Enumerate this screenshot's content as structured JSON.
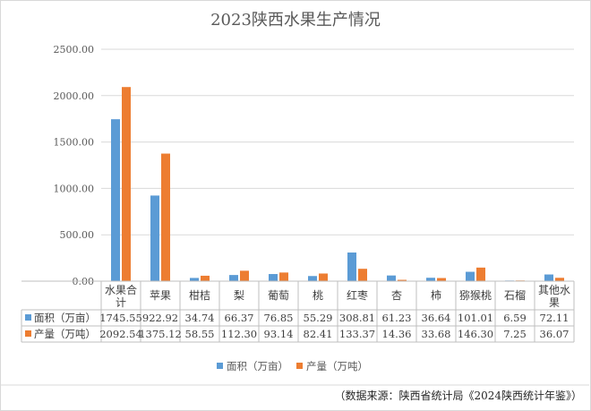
{
  "chart_data": {
    "type": "bar",
    "title": "2023陕西水果生产情况",
    "categories": [
      [
        "水果合",
        "计"
      ],
      [
        "苹果"
      ],
      [
        "柑桔"
      ],
      [
        "梨"
      ],
      [
        "葡萄"
      ],
      [
        "桃"
      ],
      [
        "红枣"
      ],
      [
        "杏"
      ],
      [
        "柿"
      ],
      [
        "猕猴桃"
      ],
      [
        "石榴"
      ],
      [
        "其他水",
        "果"
      ]
    ],
    "series": [
      {
        "name": "面积（万亩）",
        "color": "#5b9bd5",
        "values": [
          1745.55,
          922.92,
          34.74,
          66.37,
          76.85,
          55.29,
          308.81,
          61.23,
          36.64,
          101.01,
          6.59,
          72.11
        ]
      },
      {
        "name": "产量（万吨）",
        "color": "#ed7d31",
        "values": [
          2092.54,
          1375.12,
          58.55,
          112.3,
          93.14,
          82.41,
          133.37,
          14.36,
          33.68,
          146.3,
          7.25,
          36.07
        ]
      }
    ],
    "ylim": [
      0,
      2500
    ],
    "yticks": [
      "0.00",
      "500.00",
      "1000.00",
      "1500.00",
      "2000.00",
      "2500.00"
    ],
    "table_values": [
      [
        "1745.55",
        "922.92",
        "34.74",
        "66.37",
        "76.85",
        "55.29",
        "308.81",
        "61.23",
        "36.64",
        "101.01",
        "6.59",
        "72.11"
      ],
      [
        "2092.54",
        "1375.12",
        "58.55",
        "112.30",
        "93.14",
        "82.41",
        "133.37",
        "14.36",
        "33.68",
        "146.30",
        "7.25",
        "36.07"
      ]
    ],
    "legend_position": "bottom",
    "grid": true
  },
  "source_note": "（数据来源：陕西省统计局《2024陕西统计年鉴》）"
}
